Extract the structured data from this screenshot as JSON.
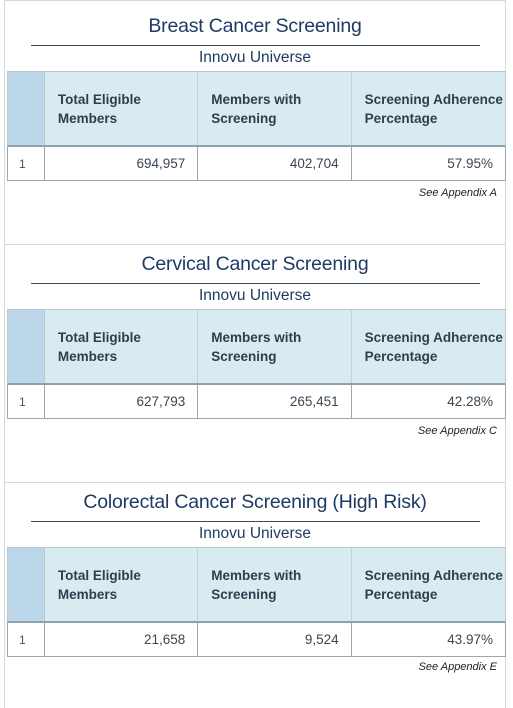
{
  "sections": [
    {
      "title": "Breast Cancer Screening",
      "subtitle": "Innovu Universe",
      "headers": [
        "Total Eligible Members",
        "Members with Screening",
        "Screening Adherence Percentage"
      ],
      "row": {
        "index": "1",
        "eligible": "694,957",
        "screened": "402,704",
        "pct": "57.95%"
      },
      "note": "See Appendix A"
    },
    {
      "title": "Cervical Cancer Screening",
      "subtitle": "Innovu Universe",
      "headers": [
        "Total Eligible Members",
        "Members with Screening",
        "Screening Adherence Percentage"
      ],
      "row": {
        "index": "1",
        "eligible": "627,793",
        "screened": "265,451",
        "pct": "42.28%"
      },
      "note": "See Appendix C"
    },
    {
      "title": "Colorectal Cancer Screening (High Risk)",
      "subtitle": "Innovu Universe",
      "headers": [
        "Total Eligible Members",
        "Members with Screening",
        "Screening Adherence Percentage"
      ],
      "row": {
        "index": "1",
        "eligible": "21,658",
        "screened": "9,524",
        "pct": "43.97%"
      },
      "note": "See Appendix E"
    }
  ]
}
